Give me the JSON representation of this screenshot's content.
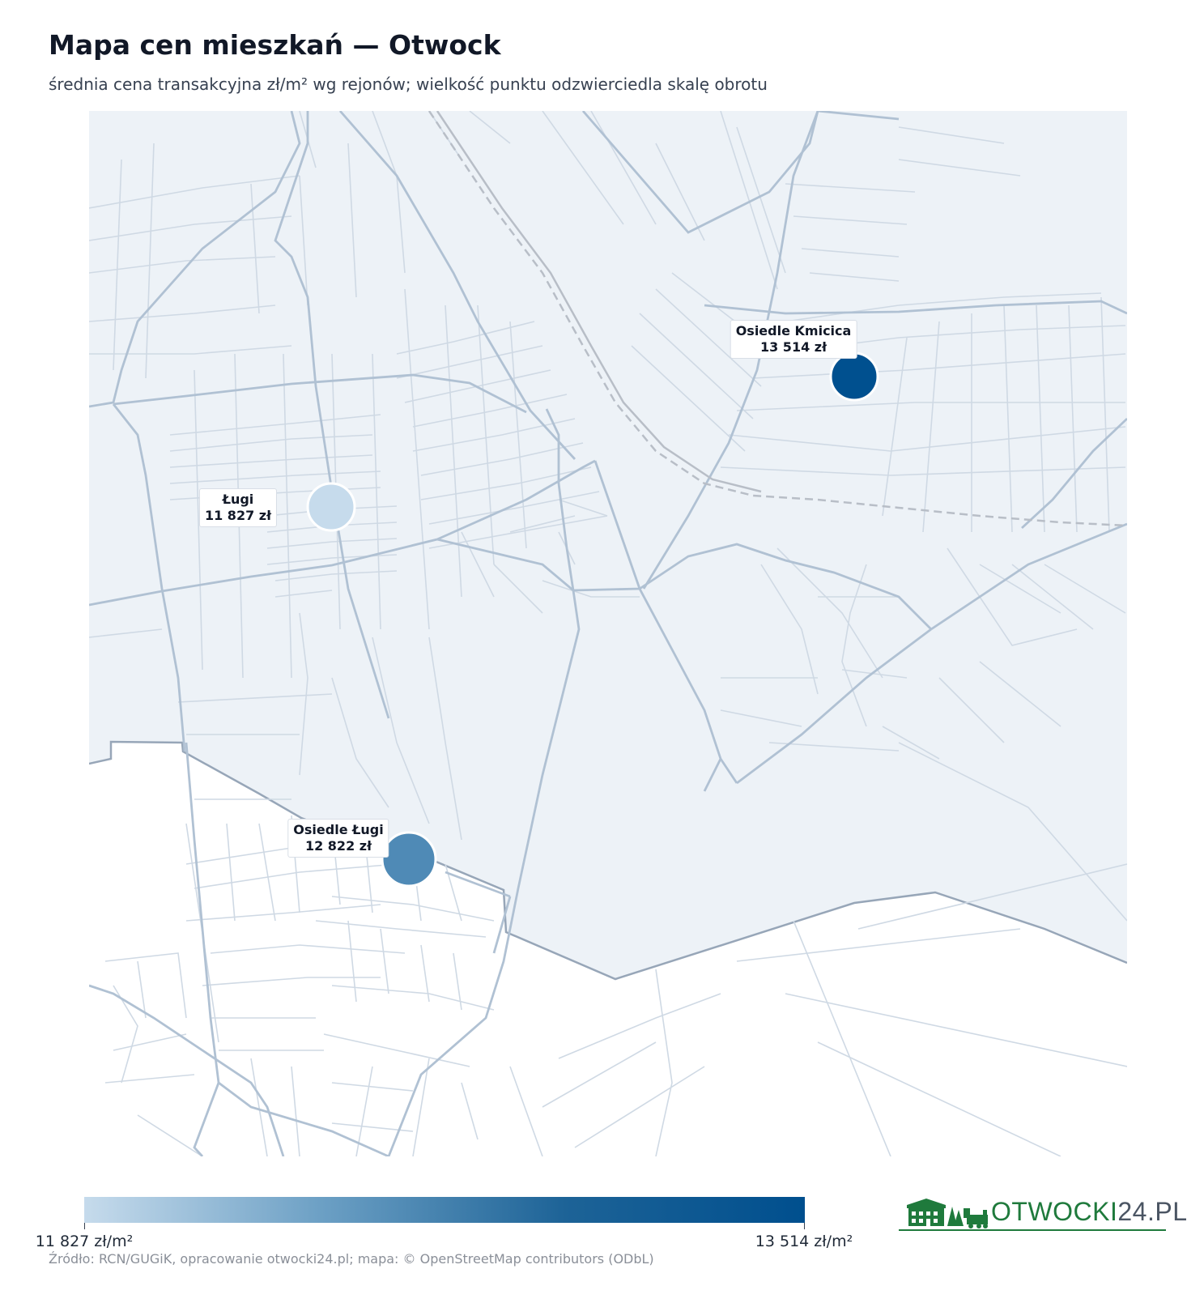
{
  "header": {
    "title": "Mapa cen mieszkań — Otwock",
    "subtitle": "średnia cena transakcyjna zł/m² wg rejonów; wielkość punktu odzwierciedla skalę obrotu"
  },
  "chart_data": {
    "type": "bubble-map",
    "points": [
      {
        "name": "Osiedle Kmicica",
        "value_label": "13 514 zł",
        "value": 13514,
        "color": "#00508f"
      },
      {
        "name": "Ługi",
        "value_label": "11 827 zł",
        "value": 11827,
        "color": "#c6dbec"
      },
      {
        "name": "Osiedle Ługi",
        "value_label": "12 822 zł",
        "value": 12822,
        "color": "#4f8ab6"
      }
    ],
    "colorscale": {
      "min": 11827,
      "max": 13514,
      "min_color": "#c6dbec",
      "max_color": "#004f8e"
    }
  },
  "legend": {
    "min_label": "11 827 zł/m²",
    "max_label": "13 514 zł/m²"
  },
  "footer": {
    "source": "Źródło: RCN/GUGiK, opracowanie otwocki24.pl; mapa: © OpenStreetMap contributors (ODbL)"
  },
  "logo": {
    "text_a": "OTWOCKI",
    "text_b": "24.PL"
  },
  "colors": {
    "city_fill": "#edf2f7",
    "major_road": "#b0c1d3",
    "minor_road": "#cfd9e4",
    "boundary": "#97a6b8",
    "rail": "#b8bec7"
  }
}
